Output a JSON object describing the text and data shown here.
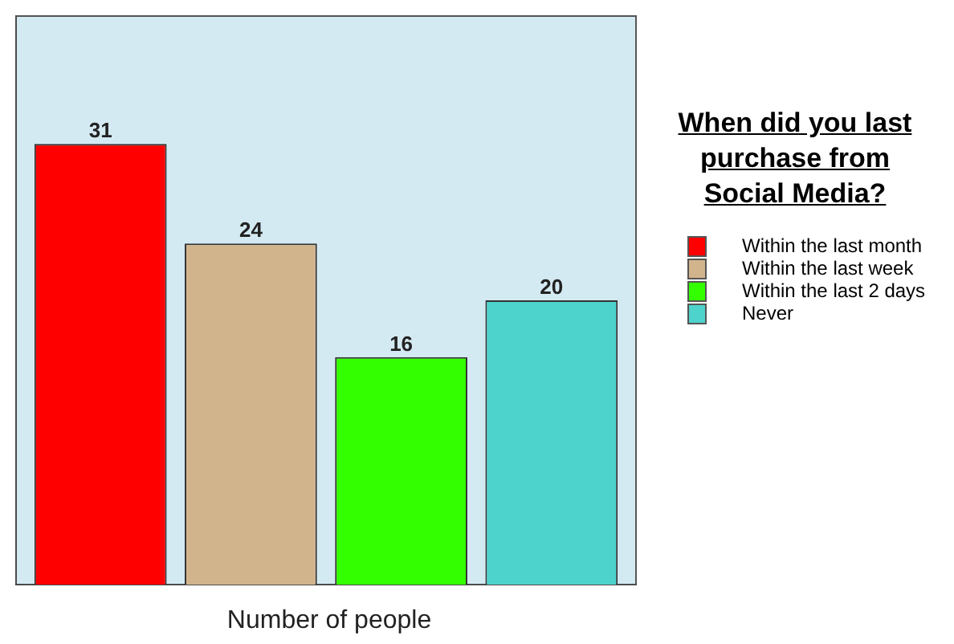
{
  "chart_data": {
    "type": "bar",
    "title": "When did you last purchase from Social Media?",
    "xlabel": "Number of people",
    "categories": [
      null
    ],
    "series": [
      {
        "name": "Within the last month",
        "color": "#ff0000",
        "values": [
          31
        ]
      },
      {
        "name": "Within the last week",
        "color": "#d2b48c",
        "values": [
          24
        ]
      },
      {
        "name": "Within the last 2 days",
        "color": "#33ff00",
        "values": [
          16
        ]
      },
      {
        "name": "Never",
        "color": "#4dd2cc",
        "values": [
          20
        ]
      }
    ],
    "ylim": [
      0,
      40
    ],
    "data_labels": true,
    "legend": "right"
  }
}
